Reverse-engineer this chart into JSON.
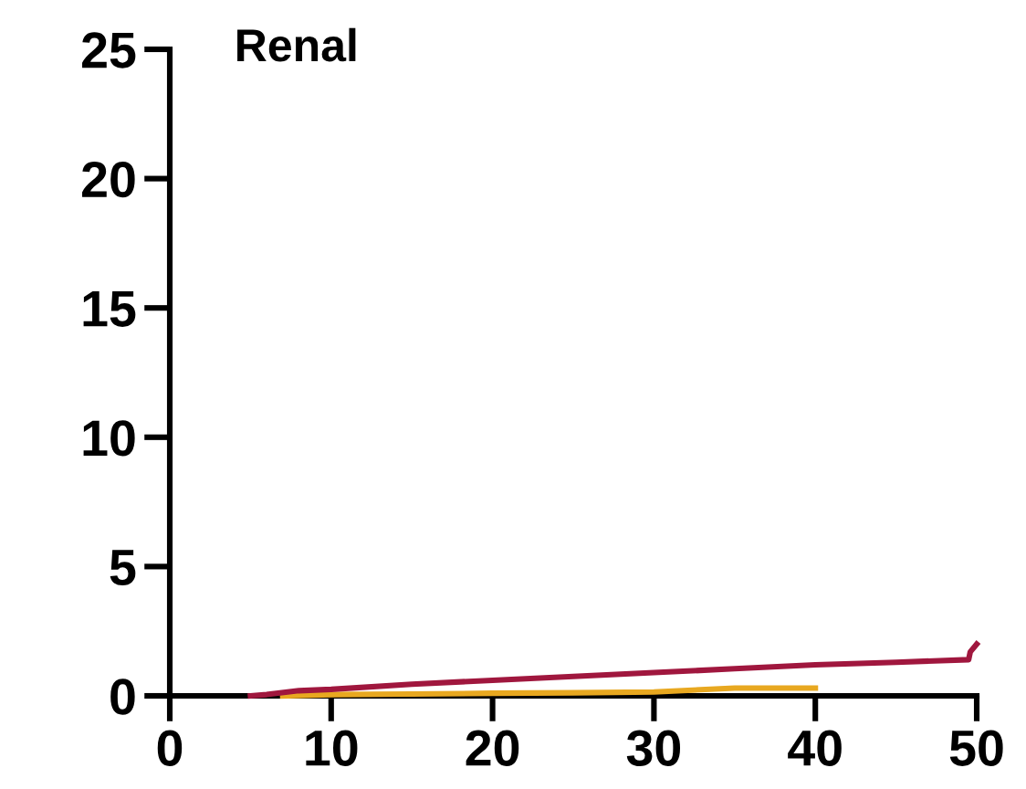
{
  "chart_data": {
    "type": "line",
    "title": "Renal",
    "xlim": [
      0,
      50
    ],
    "ylim": [
      0,
      25
    ],
    "xticks": [
      0,
      10,
      20,
      30,
      40,
      50
    ],
    "yticks": [
      0,
      5,
      10,
      15,
      20,
      25
    ],
    "grid": false,
    "legend": false,
    "marker": "none",
    "line_style": "solid",
    "series": [
      {
        "color": "#a0173e",
        "x": [
          5,
          6,
          8,
          10,
          15,
          20,
          25,
          30,
          35,
          40,
          45,
          49.5,
          49.6,
          50
        ],
        "values": [
          0,
          0.05,
          0.2,
          0.25,
          0.45,
          0.6,
          0.75,
          0.9,
          1.05,
          1.2,
          1.3,
          1.4,
          1.7,
          2.0
        ]
      },
      {
        "color": "#e8a820",
        "x": [
          7,
          10,
          15,
          20,
          25,
          30,
          35,
          40
        ],
        "values": [
          0,
          0.05,
          0.07,
          0.1,
          0.12,
          0.15,
          0.3,
          0.3
        ]
      }
    ]
  }
}
